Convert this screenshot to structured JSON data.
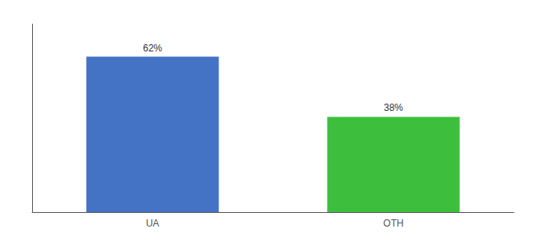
{
  "chart_data": {
    "type": "bar",
    "categories": [
      "UA",
      "OTH"
    ],
    "values": [
      62,
      38
    ],
    "value_labels": [
      "62%",
      "38%"
    ],
    "colors": [
      "#4472c4",
      "#3dbf3d"
    ],
    "ylim": [
      0,
      75
    ],
    "yticks": [],
    "tick_labels": "x",
    "data_labels": true,
    "grid": false
  }
}
